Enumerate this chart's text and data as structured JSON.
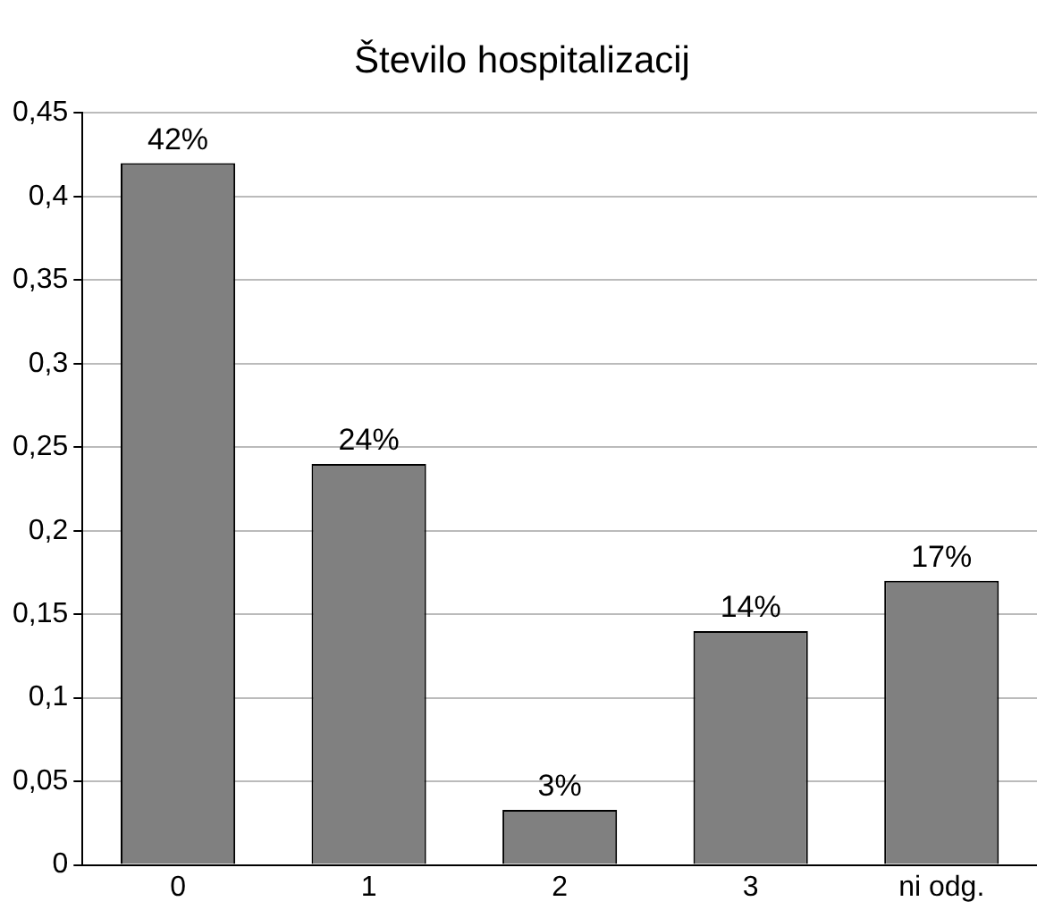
{
  "chart_data": {
    "type": "bar",
    "title": "Število hospitalizacij",
    "categories": [
      "0",
      "1",
      "2",
      "3",
      "ni odg."
    ],
    "values": [
      0.42,
      0.24,
      0.033,
      0.14,
      0.17
    ],
    "value_labels": [
      "42%",
      "24%",
      "3%",
      "14%",
      "17%"
    ],
    "color": "#808080",
    "ylim": [
      0,
      0.45
    ],
    "yticks": [
      {
        "value": 0,
        "label": "0"
      },
      {
        "value": 0.05,
        "label": "0,05"
      },
      {
        "value": 0.1,
        "label": "0,1"
      },
      {
        "value": 0.15,
        "label": "0,15"
      },
      {
        "value": 0.2,
        "label": "0,2"
      },
      {
        "value": 0.25,
        "label": "0,25"
      },
      {
        "value": 0.3,
        "label": "0,3"
      },
      {
        "value": 0.35,
        "label": "0,35"
      },
      {
        "value": 0.4,
        "label": "0,4"
      },
      {
        "value": 0.45,
        "label": "0,45"
      }
    ],
    "grid": "y",
    "legend": false
  }
}
